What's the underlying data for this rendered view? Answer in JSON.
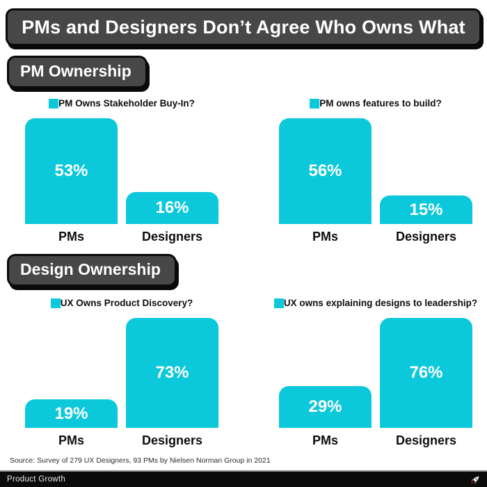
{
  "title": "PMs and Designers Don’t Agree Who Owns What",
  "sections": {
    "pm": "PM Ownership",
    "design": "Design Ownership"
  },
  "colors": {
    "accent_cyan": "#0BC8DA",
    "header_box_bg": "#474747",
    "header_box_border": "#0A0A0A",
    "footer_bg": "#0B0B0B",
    "bar_value_text": "#FFFFFF"
  },
  "chart_data": [
    {
      "type": "bar",
      "title": "PM Owns Stakeholder Buy-In?",
      "categories": [
        "PMs",
        "Designers"
      ],
      "values": [
        53,
        16
      ],
      "value_labels": [
        "53%",
        "16%"
      ],
      "ylim": [
        0,
        53
      ],
      "legend_position": "top",
      "grid": false
    },
    {
      "type": "bar",
      "title": "PM owns features to build?",
      "categories": [
        "PMs",
        "Designers"
      ],
      "values": [
        56,
        15
      ],
      "value_labels": [
        "56%",
        "15%"
      ],
      "ylim": [
        0,
        56
      ],
      "legend_position": "top",
      "grid": false
    },
    {
      "type": "bar",
      "title": "UX Owns Product Discovery?",
      "categories": [
        "PMs",
        "Designers"
      ],
      "values": [
        19,
        73
      ],
      "value_labels": [
        "19%",
        "73%"
      ],
      "ylim": [
        0,
        73
      ],
      "legend_position": "top",
      "grid": false
    },
    {
      "type": "bar",
      "title": "UX owns explaining designs to leadership?",
      "categories": [
        "PMs",
        "Designers"
      ],
      "values": [
        29,
        76
      ],
      "value_labels": [
        "29%",
        "76%"
      ],
      "ylim": [
        0,
        76
      ],
      "legend_position": "top",
      "grid": false
    }
  ],
  "source_note": "Source: Survey of 279 UX Designers, 93 PMs by Nielsen Norman Group in 2021",
  "footer": {
    "brand": "Product Growth",
    "icon": "rocket-icon"
  }
}
